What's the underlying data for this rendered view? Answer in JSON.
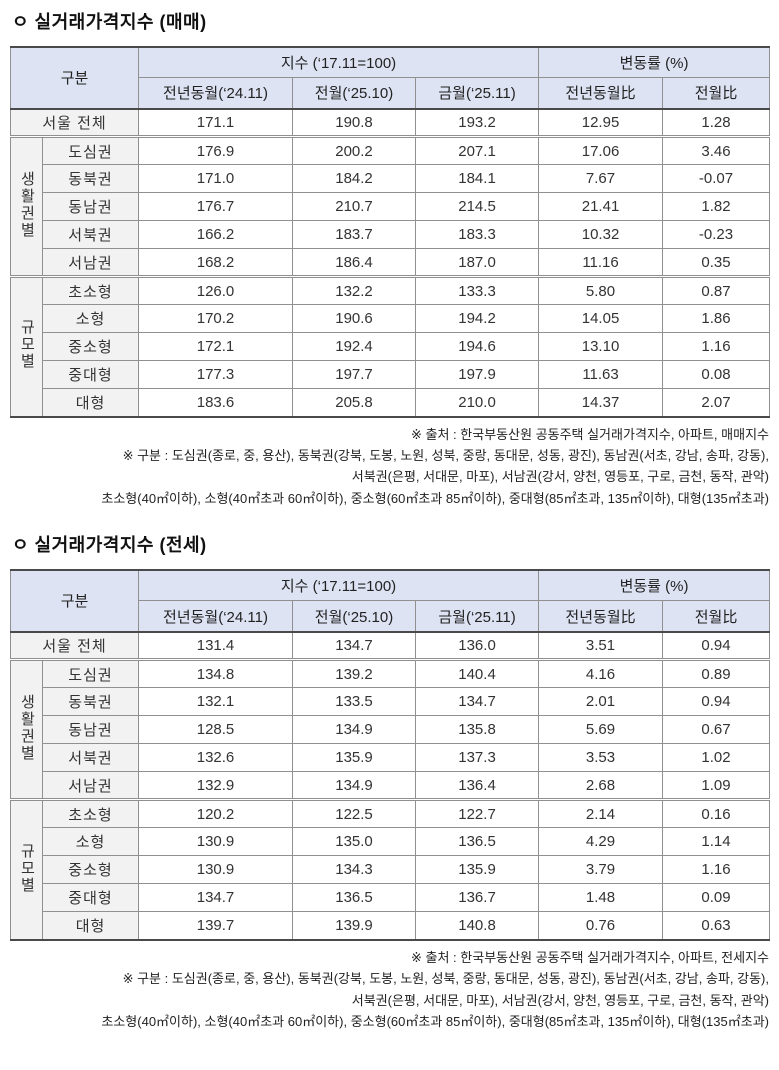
{
  "colors": {
    "header_bg": "#dde3f3",
    "label_bg": "#f2f2f2",
    "outer_border": "#4a4a4a",
    "inner_border": "#909090"
  },
  "sections": [
    {
      "title": "ㅇ 실거래가격지수 (매매)",
      "table": {
        "header": {
          "gubun": "구분",
          "index_group": "지수 (‘17.11=100)",
          "change_group": "변동률 (%)",
          "columns": [
            "전년동월(‘24.11)",
            "전월(‘25.10)",
            "금월(‘25.11)",
            "전년동월比",
            "전월比"
          ]
        },
        "rows": {
          "total": {
            "label": "서울 전체",
            "values": [
              "171.1",
              "190.8",
              "193.2",
              "12.95",
              "1.28"
            ]
          },
          "groups": [
            {
              "name": "생활권별",
              "items": [
                {
                  "label": "도심권",
                  "values": [
                    "176.9",
                    "200.2",
                    "207.1",
                    "17.06",
                    "3.46"
                  ]
                },
                {
                  "label": "동북권",
                  "values": [
                    "171.0",
                    "184.2",
                    "184.1",
                    "7.67",
                    "-0.07"
                  ]
                },
                {
                  "label": "동남권",
                  "values": [
                    "176.7",
                    "210.7",
                    "214.5",
                    "21.41",
                    "1.82"
                  ]
                },
                {
                  "label": "서북권",
                  "values": [
                    "166.2",
                    "183.7",
                    "183.3",
                    "10.32",
                    "-0.23"
                  ]
                },
                {
                  "label": "서남권",
                  "values": [
                    "168.2",
                    "186.4",
                    "187.0",
                    "11.16",
                    "0.35"
                  ]
                }
              ]
            },
            {
              "name": "규모별",
              "items": [
                {
                  "label": "초소형",
                  "values": [
                    "126.0",
                    "132.2",
                    "133.3",
                    "5.80",
                    "0.87"
                  ]
                },
                {
                  "label": "소형",
                  "values": [
                    "170.2",
                    "190.6",
                    "194.2",
                    "14.05",
                    "1.86"
                  ]
                },
                {
                  "label": "중소형",
                  "values": [
                    "172.1",
                    "192.4",
                    "194.6",
                    "13.10",
                    "1.16"
                  ]
                },
                {
                  "label": "중대형",
                  "values": [
                    "177.3",
                    "197.7",
                    "197.9",
                    "11.63",
                    "0.08"
                  ]
                },
                {
                  "label": "대형",
                  "values": [
                    "183.6",
                    "205.8",
                    "210.0",
                    "14.37",
                    "2.07"
                  ]
                }
              ]
            }
          ]
        }
      },
      "footnotes": [
        "※ 출처 : 한국부동산원 공동주택 실거래가격지수, 아파트, 매매지수",
        "※ 구분 : 도심권(종로, 중, 용산), 동북권(강북, 도봉, 노원, 성북, 중랑, 동대문, 성동, 광진), 동남권(서초, 강남, 송파, 강동),",
        "서북권(은평, 서대문, 마포), 서남권(강서, 양천, 영등포, 구로, 금천, 동작, 관악)",
        "초소형(40㎡이하), 소형(40㎡초과 60㎡이하), 중소형(60㎡초과 85㎡이하), 중대형(85㎡초과, 135㎡이하), 대형(135㎡초과)"
      ]
    },
    {
      "title": "ㅇ 실거래가격지수 (전세)",
      "table": {
        "header": {
          "gubun": "구분",
          "index_group": "지수 (‘17.11=100)",
          "change_group": "변동률 (%)",
          "columns": [
            "전년동월(‘24.11)",
            "전월(‘25.10)",
            "금월(‘25.11)",
            "전년동월比",
            "전월比"
          ]
        },
        "rows": {
          "total": {
            "label": "서울 전체",
            "values": [
              "131.4",
              "134.7",
              "136.0",
              "3.51",
              "0.94"
            ]
          },
          "groups": [
            {
              "name": "생활권별",
              "items": [
                {
                  "label": "도심권",
                  "values": [
                    "134.8",
                    "139.2",
                    "140.4",
                    "4.16",
                    "0.89"
                  ]
                },
                {
                  "label": "동북권",
                  "values": [
                    "132.1",
                    "133.5",
                    "134.7",
                    "2.01",
                    "0.94"
                  ]
                },
                {
                  "label": "동남권",
                  "values": [
                    "128.5",
                    "134.9",
                    "135.8",
                    "5.69",
                    "0.67"
                  ]
                },
                {
                  "label": "서북권",
                  "values": [
                    "132.6",
                    "135.9",
                    "137.3",
                    "3.53",
                    "1.02"
                  ]
                },
                {
                  "label": "서남권",
                  "values": [
                    "132.9",
                    "134.9",
                    "136.4",
                    "2.68",
                    "1.09"
                  ]
                }
              ]
            },
            {
              "name": "규모별",
              "items": [
                {
                  "label": "초소형",
                  "values": [
                    "120.2",
                    "122.5",
                    "122.7",
                    "2.14",
                    "0.16"
                  ]
                },
                {
                  "label": "소형",
                  "values": [
                    "130.9",
                    "135.0",
                    "136.5",
                    "4.29",
                    "1.14"
                  ]
                },
                {
                  "label": "중소형",
                  "values": [
                    "130.9",
                    "134.3",
                    "135.9",
                    "3.79",
                    "1.16"
                  ]
                },
                {
                  "label": "중대형",
                  "values": [
                    "134.7",
                    "136.5",
                    "136.7",
                    "1.48",
                    "0.09"
                  ]
                },
                {
                  "label": "대형",
                  "values": [
                    "139.7",
                    "139.9",
                    "140.8",
                    "0.76",
                    "0.63"
                  ]
                }
              ]
            }
          ]
        }
      },
      "footnotes": [
        "※ 출처 : 한국부동산원 공동주택 실거래가격지수, 아파트, 전세지수",
        "※ 구분 : 도심권(종로, 중, 용산), 동북권(강북, 도봉, 노원, 성북, 중랑, 동대문, 성동, 광진), 동남권(서초, 강남, 송파, 강동),",
        "서북권(은평, 서대문, 마포), 서남권(강서, 양천, 영등포, 구로, 금천, 동작, 관악)",
        "초소형(40㎡이하), 소형(40㎡초과 60㎡이하), 중소형(60㎡초과 85㎡이하), 중대형(85㎡초과, 135㎡이하), 대형(135㎡초과)"
      ]
    }
  ]
}
